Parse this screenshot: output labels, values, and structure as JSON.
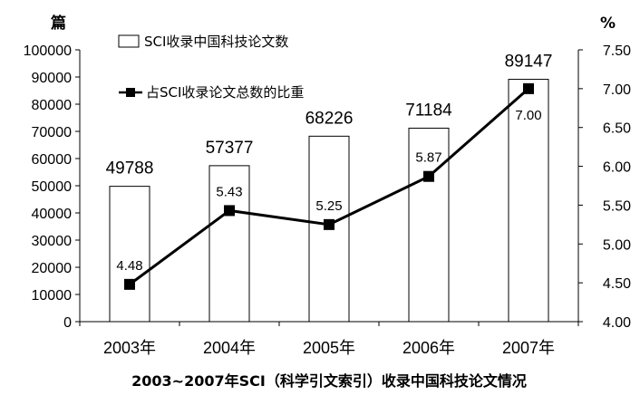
{
  "chart_data": {
    "type": "bar",
    "title": "2003~2007年SCI（科学引文索引）收录中国科技论文情况",
    "categories": [
      "2003年",
      "2004年",
      "2005年",
      "2006年",
      "2007年"
    ],
    "series": [
      {
        "name": "SCI收录中国科技论文数",
        "type": "bar",
        "axis": "left",
        "values": [
          49788,
          57377,
          68226,
          71184,
          89147
        ],
        "labels": [
          "49788",
          "57377",
          "68226",
          "71184",
          "89147"
        ]
      },
      {
        "name": "占SCI收录论文总数的比重",
        "type": "line",
        "axis": "right",
        "values": [
          4.48,
          5.43,
          5.25,
          5.87,
          7.0
        ],
        "labels": [
          "4.48",
          "5.43",
          "5.25",
          "5.87",
          "7.00"
        ]
      }
    ],
    "y_left": {
      "unit_label": "篇",
      "ylim": [
        0,
        100000
      ],
      "ticks": [
        "0",
        "10000",
        "20000",
        "30000",
        "40000",
        "50000",
        "60000",
        "70000",
        "80000",
        "90000",
        "100000"
      ]
    },
    "y_right": {
      "unit_label": "%",
      "ylim": [
        4.0,
        7.5
      ],
      "ticks": [
        "4.00",
        "4.50",
        "5.00",
        "5.50",
        "6.00",
        "6.50",
        "7.00",
        "7.50"
      ]
    },
    "grid": false,
    "legend_position": "top-left"
  }
}
